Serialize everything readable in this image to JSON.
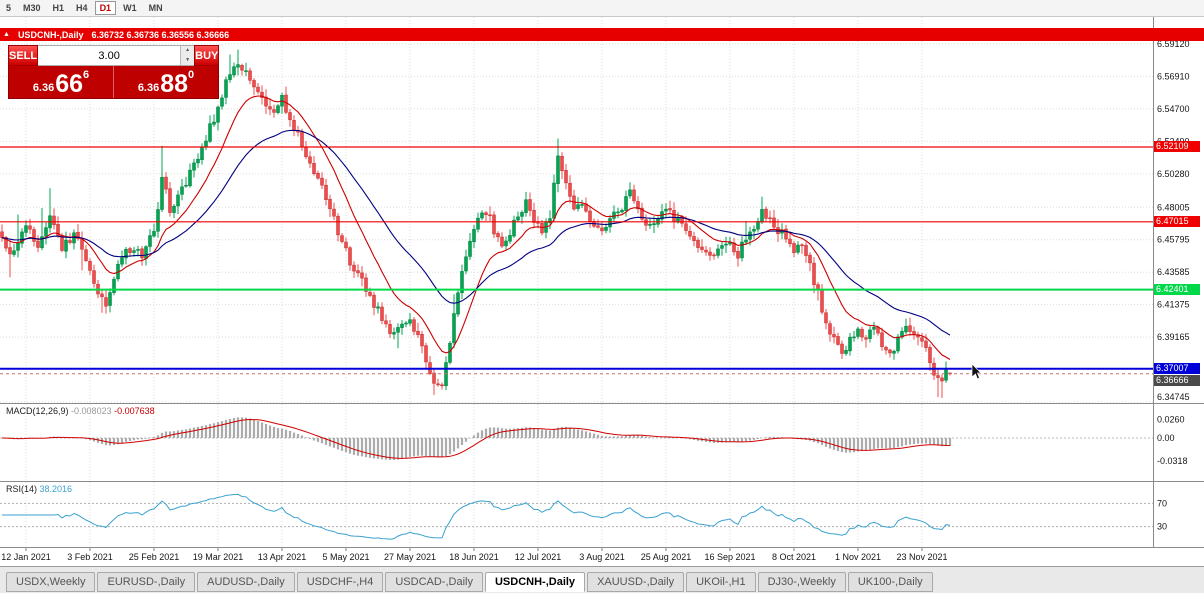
{
  "toolbar": {
    "timeframes": [
      {
        "label": "5",
        "active": false
      },
      {
        "label": "M30",
        "active": false
      },
      {
        "label": "H1",
        "active": false
      },
      {
        "label": "H4",
        "active": false
      },
      {
        "label": "D1",
        "active": true
      },
      {
        "label": "W1",
        "active": false
      },
      {
        "label": "MN",
        "active": false
      }
    ]
  },
  "symbol_strip": {
    "collapse_icon": "▲",
    "symbol": "USDCNH-,Daily",
    "ohlc": "6.36732 6.36736 6.36556 6.36666"
  },
  "trade_panel": {
    "sell_label": "SELL",
    "buy_label": "BUY",
    "lot": "3.00",
    "spin_up": "▲",
    "spin_down": "▼",
    "sell_price": {
      "base": "6.36",
      "pips": "66",
      "pt": "6"
    },
    "buy_price": {
      "base": "6.36",
      "pips": "88",
      "pt": "0"
    }
  },
  "indicators": {
    "macd_name": "MACD(12,26,9)",
    "macd_main": "-0.008023",
    "macd_signal": "-0.007638",
    "rsi_name": "RSI(14)",
    "rsi_value": "38.2016"
  },
  "tabs": {
    "items": [
      {
        "label": "USDX,Weekly",
        "active": false
      },
      {
        "label": "EURUSD-,Daily",
        "active": false
      },
      {
        "label": "AUDUSD-,Daily",
        "active": false
      },
      {
        "label": "USDCHF-,H4",
        "active": false
      },
      {
        "label": "USDCAD-,Daily",
        "active": false
      },
      {
        "label": "USDCNH-,Daily",
        "active": true
      },
      {
        "label": "XAUUSD-,Daily",
        "active": false
      },
      {
        "label": "UKOil-,H1",
        "active": false
      },
      {
        "label": "DJ30-,Weekly",
        "active": false
      },
      {
        "label": "UK100-,Daily",
        "active": false
      }
    ]
  },
  "chart_data": {
    "type": "candlestick",
    "symbol": "USDCNH",
    "timeframe": "Daily",
    "title": "USDCNH-,Daily",
    "last": {
      "o": 6.36732,
      "h": 6.36736,
      "l": 6.36556,
      "c": 6.36666
    },
    "n": 238,
    "colors": {
      "up": "#00a651",
      "up_dark": "#007a3a",
      "down": "#f04c4c",
      "down_dark": "#c03030",
      "ma_fast": "#cc0000",
      "ma_slow": "#000080",
      "rsi": "#3aa2d0",
      "macd_hist": "#ababab",
      "macd_signal": "#d00000"
    },
    "price_axis_labels": [
      {
        "v": 6.5912,
        "t": "6.59120"
      },
      {
        "v": 6.5691,
        "t": "6.56910"
      },
      {
        "v": 6.547,
        "t": "6.54700"
      },
      {
        "v": 6.5249,
        "t": "6.52490"
      },
      {
        "v": 6.5028,
        "t": "6.50280"
      },
      {
        "v": 6.48005,
        "t": "6.48005"
      },
      {
        "v": 6.45795,
        "t": "6.45795"
      },
      {
        "v": 6.43585,
        "t": "6.43585"
      },
      {
        "v": 6.41375,
        "t": "6.41375"
      },
      {
        "v": 6.39165,
        "t": "6.39165"
      },
      {
        "v": 6.34745,
        "t": "6.34745"
      }
    ],
    "levels": [
      {
        "v": 6.52109,
        "t": "6.52109",
        "color": "#f00000",
        "lw": 1.2
      },
      {
        "v": 6.47015,
        "t": "6.47015",
        "color": "#f00000",
        "lw": 1.2
      },
      {
        "v": 6.42401,
        "t": "6.42401",
        "color": "#00d84a",
        "lw": 2
      },
      {
        "v": 6.37007,
        "t": "6.37007",
        "color": "#0000d8",
        "lw": 2
      }
    ],
    "bid": {
      "v": 6.36666,
      "t": "6.36666"
    },
    "macd_axis": [
      {
        "v": 0.026,
        "t": "0.0260"
      },
      {
        "v": 0,
        "t": "0.00"
      },
      {
        "v": -0.0318,
        "t": "-0.0318"
      }
    ],
    "rsi_axis": [
      {
        "v": 70,
        "t": "70"
      },
      {
        "v": 30,
        "t": "30"
      }
    ],
    "date_labels": [
      {
        "i": 6,
        "t": "12 Jan 2021"
      },
      {
        "i": 22,
        "t": "3 Feb 2021"
      },
      {
        "i": 38,
        "t": "25 Feb 2021"
      },
      {
        "i": 54,
        "t": "19 Mar 2021"
      },
      {
        "i": 70,
        "t": "13 Apr 2021"
      },
      {
        "i": 86,
        "t": "5 May 2021"
      },
      {
        "i": 102,
        "t": "27 May 2021"
      },
      {
        "i": 118,
        "t": "18 Jun 2021"
      },
      {
        "i": 134,
        "t": "12 Jul 2021"
      },
      {
        "i": 150,
        "t": "3 Aug 2021"
      },
      {
        "i": 166,
        "t": "25 Aug 2021"
      },
      {
        "i": 182,
        "t": "16 Sep 2021"
      },
      {
        "i": 198,
        "t": "8 Oct 2021"
      },
      {
        "i": 214,
        "t": "1 Nov 2021"
      },
      {
        "i": 230,
        "t": "23 Nov 2021"
      }
    ],
    "anchors": [
      [
        0,
        6.458
      ],
      [
        3,
        6.448
      ],
      [
        6,
        6.468
      ],
      [
        9,
        6.452
      ],
      [
        12,
        6.476
      ],
      [
        15,
        6.452
      ],
      [
        18,
        6.462
      ],
      [
        21,
        6.444
      ],
      [
        24,
        6.422
      ],
      [
        26,
        6.414
      ],
      [
        29,
        6.442
      ],
      [
        32,
        6.452
      ],
      [
        35,
        6.448
      ],
      [
        38,
        6.462
      ],
      [
        40,
        6.502
      ],
      [
        42,
        6.478
      ],
      [
        45,
        6.492
      ],
      [
        48,
        6.51
      ],
      [
        51,
        6.528
      ],
      [
        54,
        6.548
      ],
      [
        57,
        6.572
      ],
      [
        59,
        6.578
      ],
      [
        62,
        6.566
      ],
      [
        65,
        6.552
      ],
      [
        68,
        6.546
      ],
      [
        70,
        6.554
      ],
      [
        72,
        6.54
      ],
      [
        75,
        6.522
      ],
      [
        78,
        6.504
      ],
      [
        81,
        6.488
      ],
      [
        84,
        6.464
      ],
      [
        87,
        6.442
      ],
      [
        90,
        6.43
      ],
      [
        93,
        6.414
      ],
      [
        96,
        6.4
      ],
      [
        98,
        6.392
      ],
      [
        100,
        6.402
      ],
      [
        102,
        6.406
      ],
      [
        104,
        6.39
      ],
      [
        106,
        6.375
      ],
      [
        108,
        6.363
      ],
      [
        110,
        6.36
      ],
      [
        111,
        6.372
      ],
      [
        113,
        6.405
      ],
      [
        115,
        6.435
      ],
      [
        117,
        6.455
      ],
      [
        119,
        6.47
      ],
      [
        121,
        6.478
      ],
      [
        123,
        6.465
      ],
      [
        125,
        6.452
      ],
      [
        127,
        6.462
      ],
      [
        129,
        6.475
      ],
      [
        131,
        6.482
      ],
      [
        133,
        6.47
      ],
      [
        135,
        6.462
      ],
      [
        137,
        6.472
      ],
      [
        139,
        6.518
      ],
      [
        141,
        6.494
      ],
      [
        143,
        6.482
      ],
      [
        146,
        6.478
      ],
      [
        149,
        6.463
      ],
      [
        152,
        6.471
      ],
      [
        155,
        6.481
      ],
      [
        157,
        6.49
      ],
      [
        159,
        6.478
      ],
      [
        161,
        6.466
      ],
      [
        164,
        6.471
      ],
      [
        166,
        6.479
      ],
      [
        169,
        6.47
      ],
      [
        172,
        6.461
      ],
      [
        175,
        6.452
      ],
      [
        178,
        6.446
      ],
      [
        181,
        6.456
      ],
      [
        184,
        6.448
      ],
      [
        187,
        6.463
      ],
      [
        190,
        6.478
      ],
      [
        193,
        6.469
      ],
      [
        196,
        6.458
      ],
      [
        198,
        6.449
      ],
      [
        200,
        6.453
      ],
      [
        202,
        6.44
      ],
      [
        204,
        6.421
      ],
      [
        206,
        6.401
      ],
      [
        208,
        6.389
      ],
      [
        210,
        6.381
      ],
      [
        212,
        6.389
      ],
      [
        214,
        6.398
      ],
      [
        216,
        6.392
      ],
      [
        218,
        6.398
      ],
      [
        220,
        6.388
      ],
      [
        222,
        6.381
      ],
      [
        224,
        6.389
      ],
      [
        226,
        6.396
      ],
      [
        228,
        6.391
      ],
      [
        230,
        6.386
      ],
      [
        232,
        6.376
      ],
      [
        234,
        6.361
      ],
      [
        236,
        6.368
      ],
      [
        237,
        6.3667
      ]
    ],
    "spikes": [
      {
        "i": 2,
        "lo": 0.014
      },
      {
        "i": 4,
        "hi": 0.018
      },
      {
        "i": 10,
        "hi": 0.015
      },
      {
        "i": 12,
        "hi": 0.016
      },
      {
        "i": 20,
        "lo": 0.013
      },
      {
        "i": 25,
        "lo": 0.009
      },
      {
        "i": 40,
        "hi": 0.02
      },
      {
        "i": 57,
        "hi": 0.011
      },
      {
        "i": 59,
        "hi": 0.009
      },
      {
        "i": 99,
        "lo": 0.008
      },
      {
        "i": 108,
        "lo": 0.007
      },
      {
        "i": 113,
        "hi": 0.01
      },
      {
        "i": 139,
        "hi": 0.006
      },
      {
        "i": 186,
        "hi": 0.008
      },
      {
        "i": 190,
        "hi": 0.007
      },
      {
        "i": 204,
        "lo": 0.006
      },
      {
        "i": 234,
        "lo": 0.008
      },
      {
        "i": 235,
        "lo": 0.009
      }
    ]
  }
}
